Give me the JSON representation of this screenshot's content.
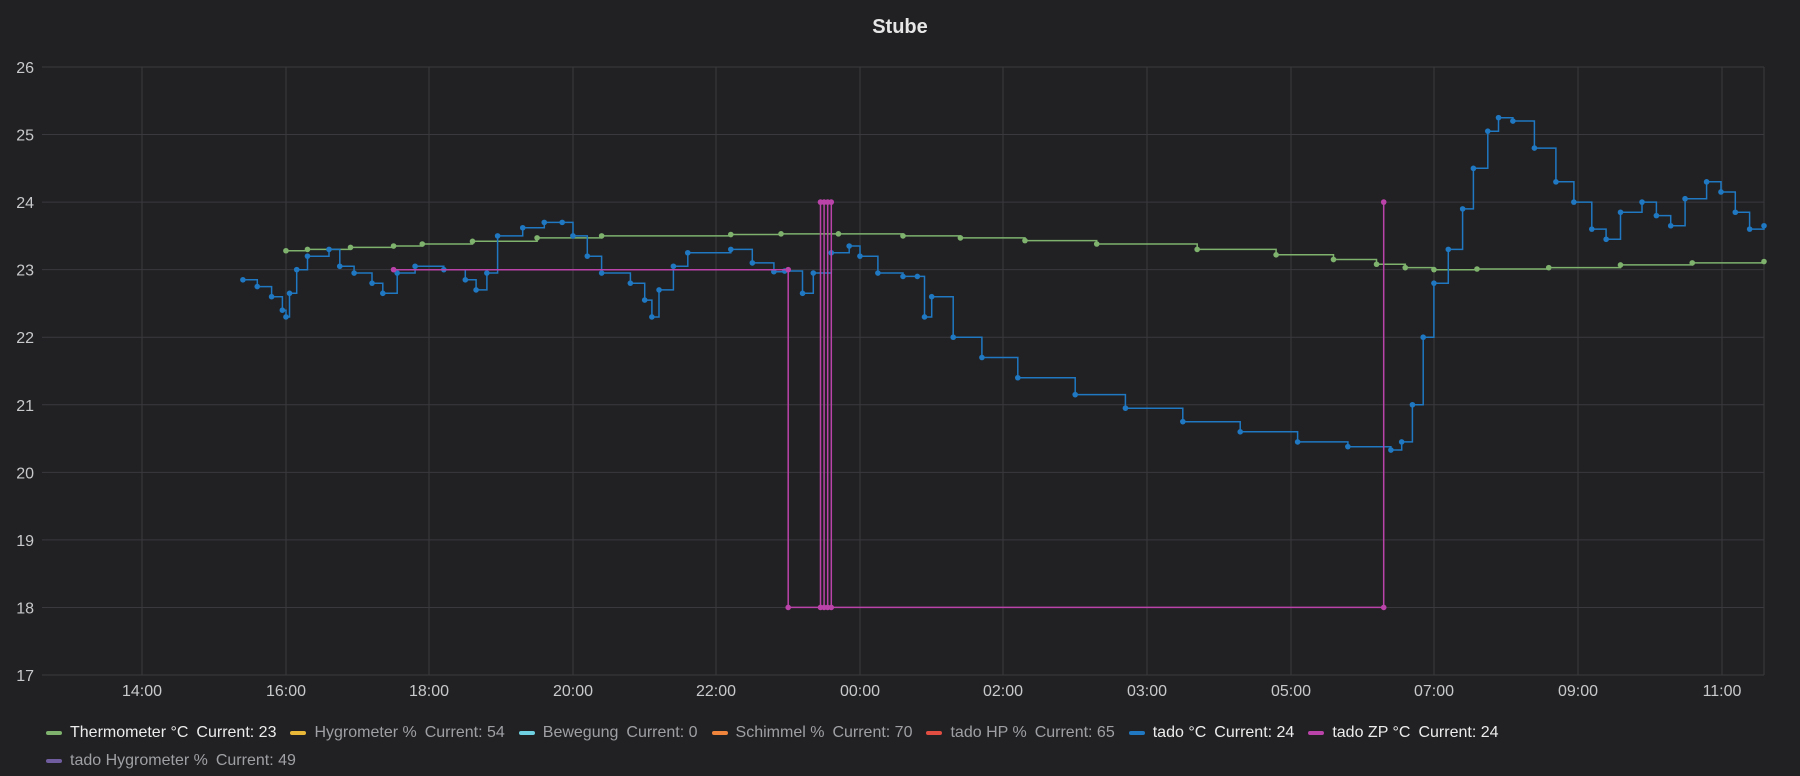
{
  "panel": {
    "title": "Stube"
  },
  "chart_data": {
    "type": "line",
    "title": "Stube",
    "xlabel": "",
    "ylabel": "",
    "x_tick_labels": [
      "14:00",
      "16:00",
      "18:00",
      "20:00",
      "22:00",
      "00:00",
      "02:00",
      "03:00",
      "05:00",
      "07:00",
      "09:00",
      "11:00"
    ],
    "x_range_hours": [
      12.6,
      36.6
    ],
    "ylim": [
      17,
      26
    ],
    "y_ticks": [
      17,
      18,
      19,
      20,
      21,
      22,
      23,
      24,
      25,
      26
    ],
    "grid": true,
    "legend_position": "bottom",
    "series": [
      {
        "name": "Thermometer °C",
        "current_label": "Current: 23",
        "color": "#7eb26d",
        "active": true,
        "points": [
          [
            16.0,
            23.28
          ],
          [
            16.3,
            23.3
          ],
          [
            16.9,
            23.33
          ],
          [
            17.5,
            23.35
          ],
          [
            17.9,
            23.38
          ],
          [
            18.6,
            23.42
          ],
          [
            19.5,
            23.47
          ],
          [
            20.4,
            23.5
          ],
          [
            22.2,
            23.52
          ],
          [
            22.9,
            23.53
          ],
          [
            23.7,
            23.53
          ],
          [
            24.6,
            23.5
          ],
          [
            25.4,
            23.47
          ],
          [
            26.3,
            23.43
          ],
          [
            27.3,
            23.38
          ],
          [
            28.7,
            23.3
          ],
          [
            29.8,
            23.22
          ],
          [
            30.6,
            23.15
          ],
          [
            31.2,
            23.08
          ],
          [
            31.6,
            23.03
          ],
          [
            32.0,
            23.0
          ],
          [
            32.6,
            23.01
          ],
          [
            33.6,
            23.03
          ],
          [
            34.6,
            23.07
          ],
          [
            35.6,
            23.1
          ],
          [
            36.6,
            23.12
          ]
        ]
      },
      {
        "name": "Hygrometer %",
        "current_label": "Current: 54",
        "color": "#eab839",
        "active": false,
        "points": []
      },
      {
        "name": "Bewegung",
        "current_label": "Current: 0",
        "color": "#6ed0e0",
        "active": false,
        "points": []
      },
      {
        "name": "Schimmel %",
        "current_label": "Current: 70",
        "color": "#ef843c",
        "active": false,
        "points": []
      },
      {
        "name": "tado HP %",
        "current_label": "Current: 65",
        "color": "#e24d42",
        "active": false,
        "points": []
      },
      {
        "name": "tado °C",
        "current_label": "Current: 24",
        "color": "#1f78c1",
        "active": true,
        "points": [
          [
            15.4,
            22.85
          ],
          [
            15.6,
            22.75
          ],
          [
            15.8,
            22.6
          ],
          [
            15.95,
            22.4
          ],
          [
            16.0,
            22.3
          ],
          [
            16.05,
            22.65
          ],
          [
            16.15,
            23.0
          ],
          [
            16.3,
            23.2
          ],
          [
            16.6,
            23.3
          ],
          [
            16.75,
            23.05
          ],
          [
            16.95,
            22.95
          ],
          [
            17.2,
            22.8
          ],
          [
            17.35,
            22.65
          ],
          [
            17.55,
            22.95
          ],
          [
            17.8,
            23.05
          ],
          [
            18.2,
            23.0
          ],
          [
            18.5,
            22.85
          ],
          [
            18.65,
            22.7
          ],
          [
            18.8,
            22.95
          ],
          [
            18.95,
            23.5
          ],
          [
            19.3,
            23.62
          ],
          [
            19.6,
            23.7
          ],
          [
            19.85,
            23.7
          ],
          [
            20.0,
            23.5
          ],
          [
            20.2,
            23.2
          ],
          [
            20.4,
            22.95
          ],
          [
            20.8,
            22.8
          ],
          [
            21.0,
            22.55
          ],
          [
            21.1,
            22.3
          ],
          [
            21.2,
            22.7
          ],
          [
            21.4,
            23.05
          ],
          [
            21.6,
            23.25
          ],
          [
            22.2,
            23.3
          ],
          [
            22.5,
            23.1
          ],
          [
            22.8,
            22.97
          ],
          [
            22.95,
            22.98
          ],
          [
            23.2,
            22.65
          ],
          [
            23.35,
            22.95
          ],
          [
            23.6,
            23.25
          ],
          [
            23.85,
            23.35
          ],
          [
            24.0,
            23.2
          ],
          [
            24.25,
            22.95
          ],
          [
            24.6,
            22.9
          ],
          [
            24.8,
            22.9
          ],
          [
            24.9,
            22.3
          ],
          [
            25.0,
            22.6
          ],
          [
            25.3,
            22.0
          ],
          [
            25.7,
            21.7
          ],
          [
            26.2,
            21.4
          ],
          [
            27.0,
            21.15
          ],
          [
            27.7,
            20.95
          ],
          [
            28.5,
            20.75
          ],
          [
            29.3,
            20.6
          ],
          [
            30.1,
            20.45
          ],
          [
            30.8,
            20.38
          ],
          [
            31.4,
            20.33
          ],
          [
            31.55,
            20.45
          ],
          [
            31.7,
            21.0
          ],
          [
            31.85,
            22.0
          ],
          [
            32.0,
            22.8
          ],
          [
            32.2,
            23.3
          ],
          [
            32.4,
            23.9
          ],
          [
            32.55,
            24.5
          ],
          [
            32.75,
            25.05
          ],
          [
            32.9,
            25.25
          ],
          [
            33.1,
            25.2
          ],
          [
            33.4,
            24.8
          ],
          [
            33.7,
            24.3
          ],
          [
            33.95,
            24.0
          ],
          [
            34.2,
            23.6
          ],
          [
            34.4,
            23.45
          ],
          [
            34.6,
            23.85
          ],
          [
            34.9,
            24.0
          ],
          [
            35.1,
            23.8
          ],
          [
            35.3,
            23.65
          ],
          [
            35.5,
            24.05
          ],
          [
            35.8,
            24.3
          ],
          [
            36.0,
            24.15
          ],
          [
            36.2,
            23.85
          ],
          [
            36.4,
            23.6
          ],
          [
            36.6,
            23.65
          ]
        ]
      },
      {
        "name": "tado ZP °C",
        "current_label": "Current: 24",
        "color": "#ba43a9",
        "active": true,
        "points": [
          [
            17.5,
            23.0
          ],
          [
            23.0,
            23.0
          ],
          [
            23.0,
            18.0
          ],
          [
            23.45,
            18.0
          ],
          [
            23.45,
            24.0
          ],
          [
            23.5,
            24.0
          ],
          [
            23.5,
            18.0
          ],
          [
            23.55,
            18.0
          ],
          [
            23.55,
            24.0
          ],
          [
            23.6,
            24.0
          ],
          [
            23.6,
            18.0
          ],
          [
            31.3,
            18.0
          ],
          [
            31.3,
            24.0
          ]
        ]
      },
      {
        "name": "tado Hygrometer %",
        "current_label": "Current: 49",
        "color": "#705da0",
        "active": false,
        "points": []
      }
    ]
  }
}
